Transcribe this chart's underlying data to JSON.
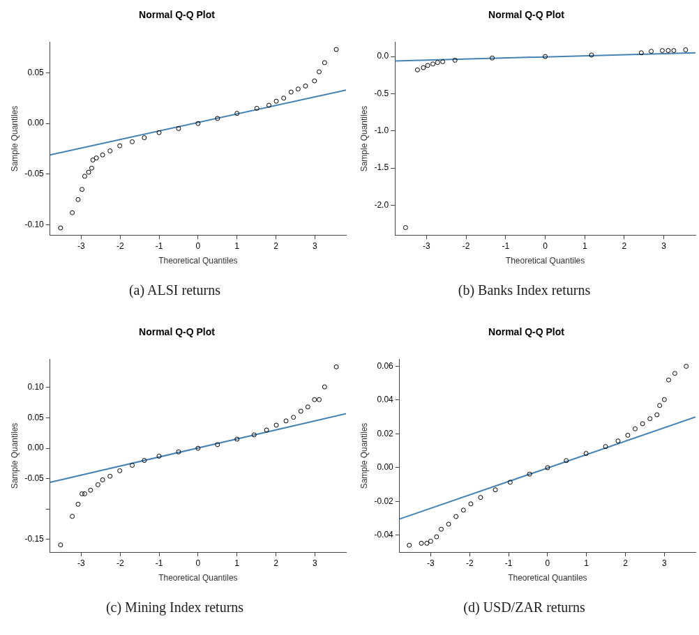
{
  "chart_data": [
    {
      "type": "scatter",
      "title": "Normal Q-Q Plot",
      "xlabel": "Theoretical Quantiles",
      "ylabel": "Sample Quantiles",
      "marker": "circle",
      "annotations": [
        "(a)  ALSI returns"
      ],
      "xlim": [
        -3.8,
        3.8
      ],
      "xticks": [
        -3,
        -2,
        -1,
        0,
        1,
        2,
        3
      ],
      "ylim": [
        -0.11,
        0.08
      ],
      "yticks": [
        {
          "value": -0.1,
          "label": "-0.10"
        },
        -0.05,
        {
          "value": 0,
          "label": "0.00"
        },
        0.05
      ],
      "series": [
        {
          "color": "#000000",
          "x": [
            -3.53,
            -3.23,
            -3.08,
            -2.98,
            -2.91,
            -2.81,
            -2.73,
            -2.7,
            -2.61,
            -2.45,
            -2.26,
            -2.01,
            -1.69,
            -1.38,
            -1.0,
            -0.5,
            0,
            0.5,
            1.0,
            1.51,
            1.82,
            2.01,
            2.2,
            2.39,
            2.57,
            2.76,
            2.99,
            3.11,
            3.25,
            3.55
          ],
          "values": [
            -0.103,
            -0.088,
            -0.075,
            -0.065,
            -0.052,
            -0.048,
            -0.044,
            -0.036,
            -0.034,
            -0.031,
            -0.027,
            -0.022,
            -0.018,
            -0.014,
            -0.009,
            -0.005,
            0.0,
            0.005,
            0.01,
            0.015,
            0.018,
            0.022,
            0.025,
            0.031,
            0.034,
            0.037,
            0.042,
            0.051,
            0.06,
            0.073
          ]
        },
        {
          "type": "line",
          "marker": "none",
          "color": "#4682b4",
          "x": [
            -3.8,
            3.8
          ],
          "values": [
            -0.031,
            0.033
          ]
        }
      ]
    },
    {
      "type": "scatter",
      "title": "Normal Q-Q Plot",
      "xlabel": "Theoretical Quantiles",
      "ylabel": "Sample Quantiles",
      "marker": "circle",
      "annotations": [
        "(b)  Banks Index returns"
      ],
      "xlim": [
        -3.8,
        3.8
      ],
      "xticks": [
        -3,
        -2,
        -1,
        0,
        1,
        2,
        3
      ],
      "ylim": [
        -2.4,
        0.19
      ],
      "yticks": [
        {
          "value": -2,
          "label": "-2.0"
        },
        -1.5,
        {
          "value": -1,
          "label": "-1.0"
        },
        -0.5,
        {
          "value": 0,
          "label": "0.0"
        }
      ],
      "series": [
        {
          "color": "#000000",
          "x": [
            -3.53,
            -3.23,
            -3.08,
            -2.97,
            -2.84,
            -2.72,
            -2.59,
            -2.28,
            -1.34,
            0,
            1.17,
            2.43,
            2.68,
            2.96,
            3.11,
            3.25,
            3.55
          ],
          "values": [
            -2.3,
            -0.18,
            -0.15,
            -0.12,
            -0.1,
            -0.08,
            -0.07,
            -0.05,
            -0.02,
            0.0,
            0.02,
            0.05,
            0.07,
            0.08,
            0.08,
            0.08,
            0.09
          ]
        },
        {
          "type": "line",
          "marker": "none",
          "color": "#4682b4",
          "x": [
            -3.8,
            3.8
          ],
          "values": [
            -0.06,
            0.05
          ]
        }
      ]
    },
    {
      "type": "scatter",
      "title": "Normal Q-Q Plot",
      "xlabel": "Theoretical Quantiles",
      "ylabel": "Sample Quantiles",
      "marker": "circle",
      "annotations": [
        "(c)  Mining Index returns"
      ],
      "xlim": [
        -3.8,
        3.8
      ],
      "xticks": [
        -3,
        -2,
        -1,
        0,
        1,
        2,
        3
      ],
      "ylim": [
        -0.171,
        0.146
      ],
      "yticks": [
        -0.15,
        {
          "value": -0.1,
          "label": null
        },
        -0.05,
        {
          "value": 0,
          "label": "0.00"
        },
        0.05,
        {
          "value": 0.1,
          "label": "0.10"
        }
      ],
      "series": [
        {
          "color": "#000000",
          "x": [
            -3.53,
            -3.23,
            -3.08,
            -2.98,
            -2.91,
            -2.76,
            -2.57,
            -2.45,
            -2.26,
            -2.01,
            -1.69,
            -1.38,
            -1.0,
            -0.5,
            0,
            0.5,
            1.0,
            1.44,
            1.76,
            2.01,
            2.26,
            2.45,
            2.64,
            2.82,
            2.99,
            3.11,
            3.25,
            3.55
          ],
          "values": [
            -0.159,
            -0.112,
            -0.092,
            -0.075,
            -0.075,
            -0.069,
            -0.06,
            -0.052,
            -0.046,
            -0.037,
            -0.028,
            -0.02,
            -0.013,
            -0.006,
            0,
            0.006,
            0.015,
            0.022,
            0.03,
            0.038,
            0.045,
            0.051,
            0.061,
            0.068,
            0.08,
            0.08,
            0.101,
            0.134
          ]
        },
        {
          "type": "line",
          "marker": "none",
          "color": "#4682b4",
          "x": [
            -3.8,
            3.8
          ],
          "values": [
            -0.056,
            0.057
          ]
        }
      ]
    },
    {
      "type": "scatter",
      "title": "Normal Q-Q Plot",
      "xlabel": "Theoretical Quantiles",
      "ylabel": "Sample Quantiles",
      "marker": "circle",
      "annotations": [
        "(d)  USD/ZAR returns"
      ],
      "xlim": [
        -3.8,
        3.8
      ],
      "xticks": [
        -3,
        -2,
        -1,
        0,
        1,
        2,
        3
      ],
      "ylim": [
        -0.05,
        0.064
      ],
      "yticks": [
        -0.04,
        -0.02,
        {
          "value": 0,
          "label": "0.00"
        },
        0.02,
        0.04,
        0.06
      ],
      "series": [
        {
          "color": "#000000",
          "x": [
            -3.55,
            -3.24,
            -3.1,
            -3.0,
            -2.85,
            -2.73,
            -2.54,
            -2.35,
            -2.16,
            -1.97,
            -1.72,
            -1.34,
            -0.96,
            -0.46,
            0,
            0.48,
            0.99,
            1.49,
            1.81,
            2.06,
            2.25,
            2.44,
            2.63,
            2.81,
            2.88,
            3.0,
            3.11,
            3.27,
            3.56
          ],
          "values": [
            -0.0459,
            -0.0447,
            -0.0447,
            -0.0435,
            -0.0409,
            -0.0364,
            -0.0334,
            -0.0289,
            -0.0251,
            -0.0214,
            -0.0176,
            -0.0131,
            -0.0086,
            -0.0038,
            0,
            0.0042,
            0.0084,
            0.0125,
            0.0158,
            0.0192,
            0.023,
            0.026,
            0.029,
            0.0313,
            0.0368,
            0.0403,
            0.0519,
            0.0558,
            0.06
          ]
        },
        {
          "type": "line",
          "marker": "none",
          "color": "#4682b4",
          "x": [
            -3.8,
            3.8
          ],
          "values": [
            -0.0304,
            0.03
          ]
        }
      ]
    }
  ]
}
